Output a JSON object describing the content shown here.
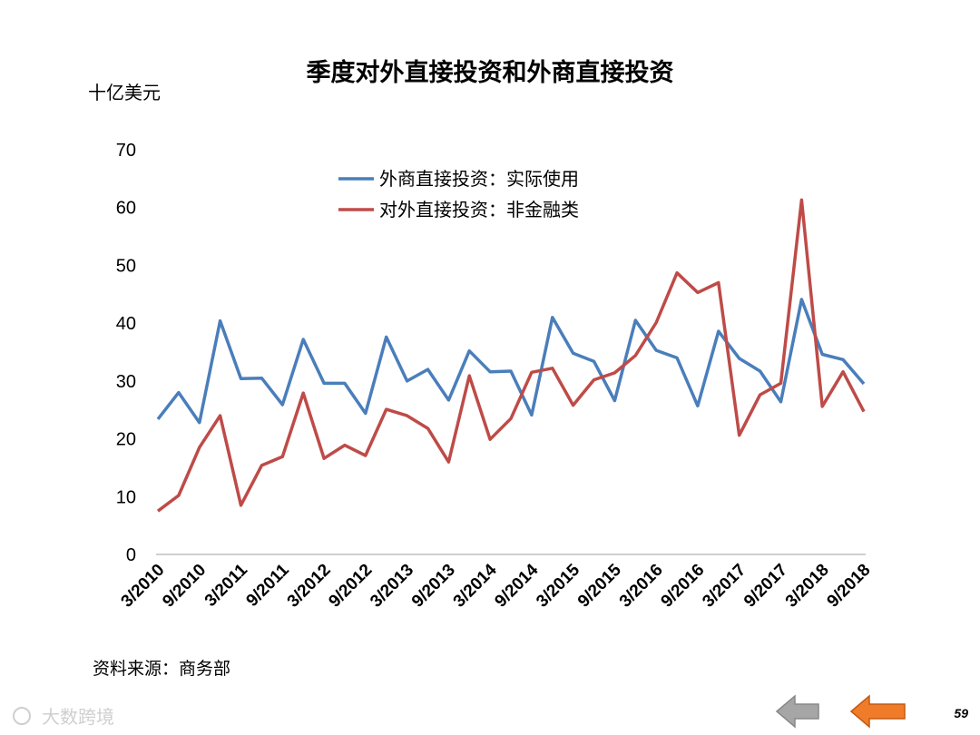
{
  "chart_data": {
    "type": "line",
    "title": "季度对外直接投资和外商直接投资",
    "ylabel": "十亿美元",
    "ylim": [
      0,
      70
    ],
    "yticks": [
      0,
      10,
      20,
      30,
      40,
      50,
      60,
      70
    ],
    "x": [
      "3/2010",
      "6/2010",
      "9/2010",
      "12/2010",
      "3/2011",
      "6/2011",
      "9/2011",
      "12/2011",
      "3/2012",
      "6/2012",
      "9/2012",
      "12/2012",
      "3/2013",
      "6/2013",
      "9/2013",
      "12/2013",
      "3/2014",
      "6/2014",
      "9/2014",
      "12/2014",
      "3/2015",
      "6/2015",
      "9/2015",
      "12/2015",
      "3/2016",
      "6/2016",
      "9/2016",
      "12/2016",
      "3/2017",
      "6/2017",
      "9/2017",
      "12/2017",
      "3/2018",
      "6/2018",
      "9/2018"
    ],
    "xtick_labels": [
      "3/2010",
      "9/2010",
      "3/2011",
      "9/2011",
      "3/2012",
      "9/2012",
      "3/2013",
      "9/2013",
      "3/2014",
      "9/2014",
      "3/2015",
      "9/2015",
      "3/2016",
      "9/2016",
      "3/2017",
      "9/2017",
      "3/2018",
      "9/2018"
    ],
    "legend_position": "top-center",
    "grid": false,
    "series": [
      {
        "name": "外商直接投资：实际使用",
        "color": "#4a7ebb",
        "values": [
          23.4,
          28.0,
          22.8,
          40.4,
          30.4,
          30.5,
          25.9,
          37.2,
          29.6,
          29.6,
          24.4,
          37.6,
          30.0,
          32.0,
          26.7,
          35.2,
          31.6,
          31.7,
          24.1,
          41.0,
          34.8,
          33.4,
          26.6,
          40.5,
          35.3,
          34.0,
          25.7,
          38.6,
          33.9,
          31.7,
          26.4,
          44.1,
          34.6,
          33.7,
          29.5
        ]
      },
      {
        "name": "对外直接投资：非金融类",
        "color": "#be4b48",
        "values": [
          7.5,
          10.2,
          18.5,
          24.0,
          8.5,
          15.4,
          16.9,
          27.9,
          16.6,
          18.9,
          17.1,
          25.1,
          24.0,
          21.8,
          16.0,
          30.9,
          19.9,
          23.5,
          31.5,
          32.2,
          25.8,
          30.2,
          31.4,
          34.4,
          40.1,
          48.7,
          45.3,
          47.0,
          20.6,
          27.6,
          29.6,
          61.3,
          25.6,
          31.6,
          24.7
        ]
      }
    ]
  },
  "source": "资料来源：商务部",
  "page_number": "59",
  "watermark": "大数跨境",
  "nav": {
    "prev_icon": "arrow-left-gray",
    "back_icon": "arrow-left-orange",
    "prev_color": "#a6a6a6",
    "back_color": "#f07c2a"
  }
}
